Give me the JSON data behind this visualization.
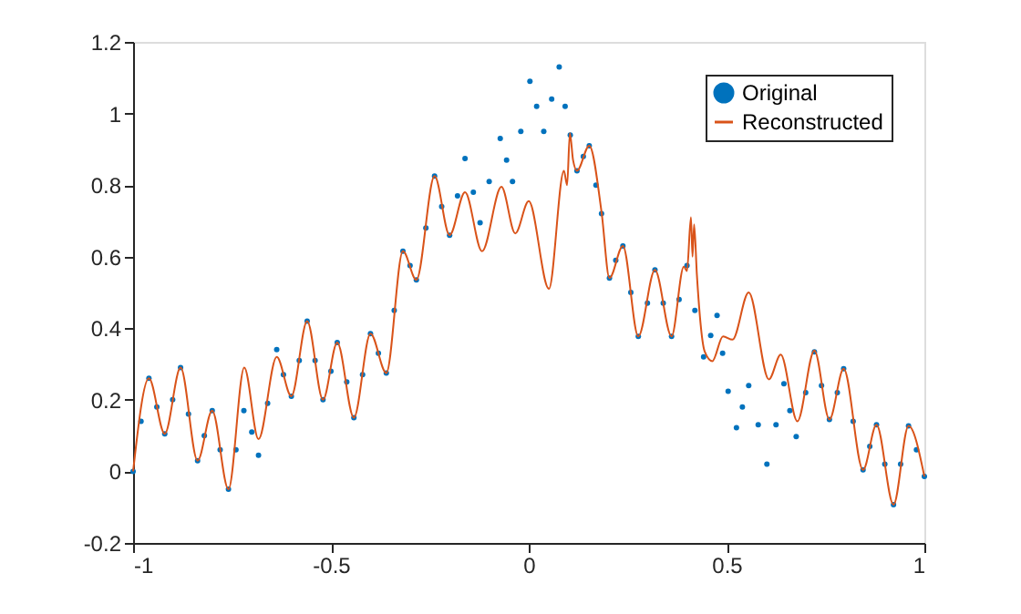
{
  "chart_data": {
    "type": "line",
    "xlim": [
      -1,
      1
    ],
    "xticks": [
      -1,
      -0.5,
      0,
      0.5,
      1
    ],
    "ylim": [
      -0.2,
      1.2
    ],
    "yticks": [
      -0.2,
      0,
      0.2,
      0.4,
      0.6,
      0.8,
      1,
      1.2
    ],
    "grid": false,
    "legend": "top right",
    "series": [
      {
        "name": "Original",
        "type": "scatter",
        "color": "#0072bd",
        "x": [
          -1,
          -0.98,
          -0.96,
          -0.94,
          -0.92,
          -0.9,
          -0.88,
          -0.86,
          -0.837,
          -0.82,
          -0.8,
          -0.78,
          -0.759,
          -0.74,
          -0.72,
          -0.7,
          -0.683,
          -0.66,
          -0.637,
          -0.62,
          -0.6,
          -0.58,
          -0.56,
          -0.54,
          -0.52,
          -0.5,
          -0.484,
          -0.46,
          -0.442,
          -0.42,
          -0.4,
          -0.38,
          -0.36,
          -0.34,
          -0.318,
          -0.3,
          -0.284,
          -0.26,
          -0.238,
          -0.22,
          -0.2,
          -0.18,
          -0.161,
          -0.14,
          -0.123,
          -0.1,
          -0.072,
          -0.056,
          -0.041,
          -0.02,
          0.003,
          0.02,
          0.038,
          0.058,
          0.077,
          0.092,
          0.105,
          0.122,
          0.138,
          0.153,
          0.17,
          0.184,
          0.204,
          0.22,
          0.238,
          0.258,
          0.277,
          0.3,
          0.319,
          0.34,
          0.361,
          0.38,
          0.4,
          0.42,
          0.442,
          0.46,
          0.476,
          0.49,
          0.504,
          0.525,
          0.54,
          0.556,
          0.58,
          0.602,
          0.625,
          0.645,
          0.66,
          0.676,
          0.7,
          0.722,
          0.74,
          0.76,
          0.78,
          0.796,
          0.82,
          0.845,
          0.862,
          0.879,
          0.9,
          0.922,
          0.94,
          0.96,
          0.98,
          1.0
        ],
        "values": [
          0.0,
          0.14,
          0.26,
          0.18,
          0.105,
          0.2,
          0.29,
          0.16,
          0.03,
          0.1,
          0.17,
          0.06,
          -0.05,
          0.06,
          0.17,
          0.11,
          0.045,
          0.19,
          0.34,
          0.27,
          0.21,
          0.31,
          0.42,
          0.31,
          0.2,
          0.28,
          0.36,
          0.25,
          0.15,
          0.27,
          0.385,
          0.33,
          0.275,
          0.45,
          0.615,
          0.575,
          0.535,
          0.68,
          0.825,
          0.74,
          0.66,
          0.77,
          0.874,
          0.78,
          0.695,
          0.81,
          0.93,
          0.87,
          0.81,
          0.95,
          1.09,
          1.02,
          0.95,
          1.04,
          1.13,
          1.02,
          0.94,
          0.84,
          0.88,
          0.91,
          0.8,
          0.72,
          0.54,
          0.59,
          0.63,
          0.5,
          0.377,
          0.47,
          0.563,
          0.47,
          0.377,
          0.48,
          0.575,
          0.45,
          0.32,
          0.38,
          0.436,
          0.33,
          0.224,
          0.122,
          0.18,
          0.24,
          0.13,
          0.02,
          0.13,
          0.245,
          0.17,
          0.097,
          0.22,
          0.334,
          0.24,
          0.145,
          0.22,
          0.287,
          0.14,
          0.004,
          0.07,
          0.13,
          0.02,
          -0.093,
          0.02,
          0.127,
          0.06,
          -0.014
        ]
      },
      {
        "name": "Reconstructed",
        "color": "#d95319",
        "x": [
          -1,
          -0.96,
          -0.92,
          -0.88,
          -0.837,
          -0.8,
          -0.759,
          -0.719,
          -0.683,
          -0.637,
          -0.6,
          -0.56,
          -0.52,
          -0.484,
          -0.442,
          -0.4,
          -0.36,
          -0.318,
          -0.284,
          -0.238,
          -0.2,
          -0.161,
          -0.118,
          -0.069,
          -0.034,
          0.0,
          0.051,
          0.089,
          0.097,
          0.104,
          0.112,
          0.122,
          0.153,
          0.184,
          0.204,
          0.238,
          0.277,
          0.319,
          0.361,
          0.392,
          0.4,
          0.41,
          0.414,
          0.418,
          0.425,
          0.445,
          0.464,
          0.491,
          0.515,
          0.556,
          0.607,
          0.637,
          0.679,
          0.722,
          0.76,
          0.796,
          0.845,
          0.879,
          0.922,
          0.96,
          1.0
        ],
        "values": [
          0.0,
          0.26,
          0.105,
          0.29,
          0.03,
          0.17,
          -0.05,
          0.29,
          0.09,
          0.32,
          0.21,
          0.42,
          0.2,
          0.36,
          0.15,
          0.385,
          0.275,
          0.615,
          0.535,
          0.825,
          0.66,
          0.78,
          0.615,
          0.795,
          0.665,
          0.755,
          0.51,
          0.84,
          0.8,
          0.945,
          0.87,
          0.84,
          0.91,
          0.725,
          0.54,
          0.63,
          0.377,
          0.563,
          0.377,
          0.572,
          0.56,
          0.71,
          0.6,
          0.69,
          0.55,
          0.334,
          0.308,
          0.377,
          0.368,
          0.5,
          0.257,
          0.326,
          0.14,
          0.338,
          0.145,
          0.287,
          0.004,
          0.13,
          -0.093,
          0.127,
          -0.014
        ]
      }
    ]
  }
}
